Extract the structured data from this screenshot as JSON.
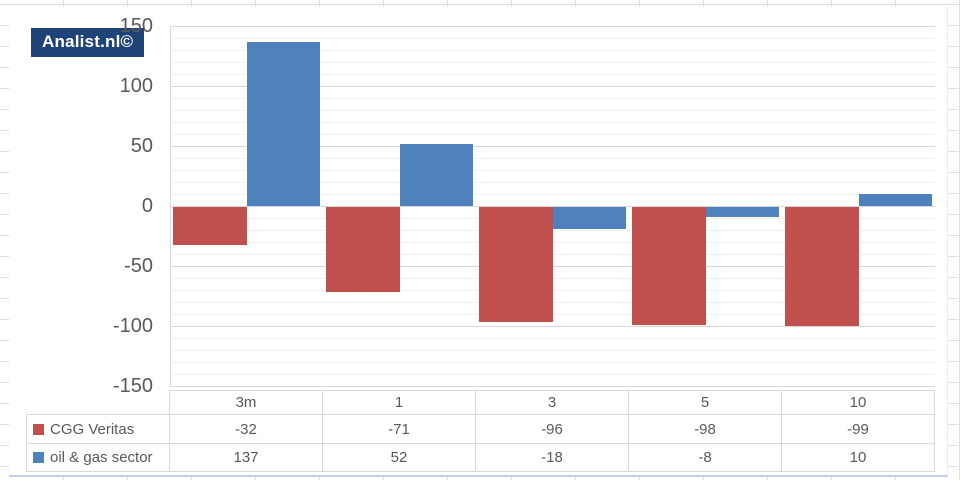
{
  "logo": {
    "text": "Analist.nl©"
  },
  "chart_data": {
    "type": "bar",
    "categories": [
      "3m",
      "1",
      "3",
      "5",
      "10"
    ],
    "series": [
      {
        "name": "CGG Veritas",
        "color": "#c0504d",
        "values": [
          -32,
          -71,
          -96,
          -98,
          -99
        ]
      },
      {
        "name": "oil & gas sector",
        "color": "#4f81bd",
        "values": [
          137,
          52,
          -18,
          -8,
          10
        ]
      }
    ],
    "title": "",
    "xlabel": "",
    "ylabel": "",
    "ylim": [
      -150,
      150
    ],
    "ytick_interval": 50,
    "minor_gridline_interval": 10,
    "yticks": [
      "150",
      "100",
      "50",
      "0",
      "-50",
      "-100",
      "-150"
    ],
    "grid": true,
    "legend_position": "table-left-column"
  },
  "colors": {
    "series_red": "#c0504d",
    "series_blue": "#4f81bd",
    "logo_background": "#1e4477",
    "axis_text": "#595959",
    "gridline_major": "#d8d8d8",
    "gridline_minor": "#efefef",
    "table_border": "#d9d9d9",
    "chart_border_bottom": "#bdd0e7"
  }
}
